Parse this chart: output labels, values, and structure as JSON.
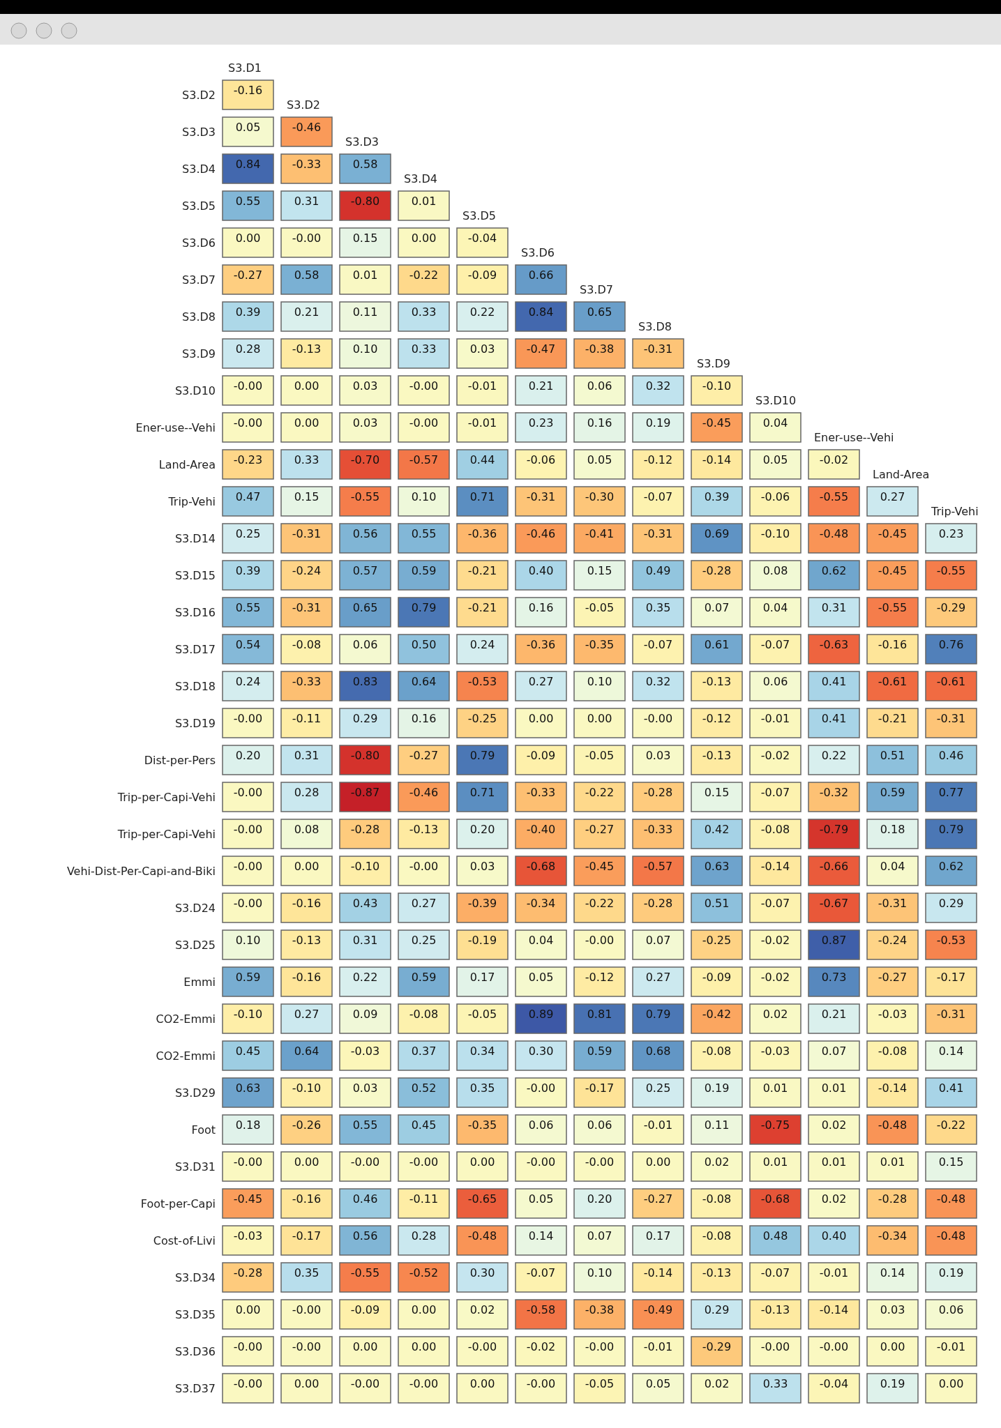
{
  "chart_data": {
    "type": "heatmap",
    "categories": [
      "S3.D1",
      "S3.D2",
      "S3.D3",
      "S3.D4",
      "S3.D5",
      "S3.D6",
      "S3.D7",
      "S3.D8",
      "S3.D9",
      "S3.D10",
      "Ener-use--Vehi",
      "Land-Area",
      "Trip-Vehi"
    ],
    "y_categories": [
      "S3.D2",
      "S3.D3",
      "S3.D4",
      "S3.D5",
      "S3.D6",
      "S3.D7",
      "S3.D8",
      "S3.D9",
      "S3.D10",
      "Ener-use--Vehi",
      "Land-Area",
      "Trip-Vehi",
      "S3.D14",
      "S3.D15",
      "S3.D16",
      "S3.D17",
      "S3.D18",
      "S3.D19",
      "Dist-per-Pers",
      "Trip-per-Capi-Vehi",
      "Trip-per-Capi-Vehi",
      "Vehi-Dist-Per-Capi-and-Biki",
      "S3.D24",
      "S3.D25",
      "Emmi",
      "CO2-Emmi",
      "CO2-Emmi",
      "S3.D29",
      "Foot",
      "S3.D31",
      "Foot-per-Capi",
      "Cost-of-Livi",
      "S3.D34",
      "S3.D35",
      "S3.D36",
      "S3.D37"
    ],
    "cells": [
      [
        -0.16,
        null,
        null,
        null,
        null,
        null,
        null,
        null,
        null,
        null,
        null,
        null,
        null
      ],
      [
        0.05,
        -0.46,
        null,
        null,
        null,
        null,
        null,
        null,
        null,
        null,
        null,
        null,
        null
      ],
      [
        0.84,
        -0.33,
        0.58,
        null,
        null,
        null,
        null,
        null,
        null,
        null,
        null,
        null,
        null
      ],
      [
        0.55,
        0.31,
        -0.8,
        0.01,
        null,
        null,
        null,
        null,
        null,
        null,
        null,
        null,
        null
      ],
      [
        0.0,
        -0.0,
        0.15,
        0.0,
        -0.04,
        null,
        null,
        null,
        null,
        null,
        null,
        null,
        null
      ],
      [
        -0.27,
        0.58,
        0.01,
        -0.22,
        -0.09,
        0.66,
        null,
        null,
        null,
        null,
        null,
        null,
        null
      ],
      [
        0.39,
        0.21,
        0.11,
        0.33,
        0.22,
        0.84,
        0.65,
        null,
        null,
        null,
        null,
        null,
        null
      ],
      [
        0.28,
        -0.13,
        0.1,
        0.33,
        0.03,
        -0.47,
        -0.38,
        -0.31,
        null,
        null,
        null,
        null,
        null
      ],
      [
        -0.0,
        0.0,
        0.03,
        -0.0,
        -0.01,
        0.21,
        0.06,
        0.32,
        -0.1,
        null,
        null,
        null,
        null
      ],
      [
        -0.0,
        0.0,
        0.03,
        -0.0,
        -0.01,
        0.23,
        0.16,
        0.19,
        -0.45,
        0.04,
        null,
        null,
        null
      ],
      [
        -0.23,
        0.33,
        -0.7,
        -0.57,
        0.44,
        -0.06,
        0.05,
        -0.12,
        -0.14,
        0.05,
        -0.02,
        null,
        null
      ],
      [
        0.47,
        0.15,
        -0.55,
        0.1,
        0.71,
        -0.31,
        -0.3,
        -0.07,
        0.39,
        -0.06,
        -0.55,
        0.27,
        null
      ],
      [
        0.25,
        -0.31,
        0.56,
        0.55,
        -0.36,
        -0.46,
        -0.41,
        -0.31,
        0.69,
        -0.1,
        -0.48,
        -0.45,
        0.23
      ],
      [
        0.39,
        -0.24,
        0.57,
        0.59,
        -0.21,
        0.4,
        0.15,
        0.49,
        -0.28,
        0.08,
        0.62,
        -0.45,
        -0.55
      ],
      [
        0.55,
        -0.31,
        0.65,
        0.79,
        -0.21,
        0.16,
        -0.05,
        0.35,
        0.07,
        0.04,
        0.31,
        -0.55,
        -0.29
      ],
      [
        0.54,
        -0.08,
        0.06,
        0.5,
        0.24,
        -0.36,
        -0.35,
        -0.07,
        0.61,
        -0.07,
        -0.63,
        -0.16,
        0.76
      ],
      [
        0.24,
        -0.33,
        0.83,
        0.64,
        -0.53,
        0.27,
        0.1,
        0.32,
        -0.13,
        0.06,
        0.41,
        -0.61,
        -0.61
      ],
      [
        -0.0,
        -0.11,
        0.29,
        0.16,
        -0.25,
        0.0,
        0.0,
        -0.0,
        -0.12,
        -0.01,
        0.41,
        -0.21,
        -0.31
      ],
      [
        0.2,
        0.31,
        -0.8,
        -0.27,
        0.79,
        -0.09,
        -0.05,
        0.03,
        -0.13,
        -0.02,
        0.22,
        0.51,
        0.46
      ],
      [
        -0.0,
        0.28,
        -0.87,
        -0.46,
        0.71,
        -0.33,
        -0.22,
        -0.28,
        0.15,
        -0.07,
        -0.32,
        0.59,
        0.77
      ],
      [
        -0.0,
        0.08,
        -0.28,
        -0.13,
        0.2,
        -0.4,
        -0.27,
        -0.33,
        0.42,
        -0.08,
        -0.79,
        0.18,
        0.79
      ],
      [
        -0.0,
        0.0,
        -0.1,
        -0.0,
        0.03,
        -0.68,
        -0.45,
        -0.57,
        0.63,
        -0.14,
        -0.66,
        0.04,
        0.62
      ],
      [
        -0.0,
        -0.16,
        0.43,
        0.27,
        -0.39,
        -0.34,
        -0.22,
        -0.28,
        0.51,
        -0.07,
        -0.67,
        -0.31,
        0.29
      ],
      [
        0.1,
        -0.13,
        0.31,
        0.25,
        -0.19,
        0.04,
        -0.0,
        0.07,
        -0.25,
        -0.02,
        0.87,
        -0.24,
        -0.53
      ],
      [
        0.59,
        -0.16,
        0.22,
        0.59,
        0.17,
        0.05,
        -0.12,
        0.27,
        -0.09,
        -0.02,
        0.73,
        -0.27,
        -0.17
      ],
      [
        -0.1,
        0.27,
        0.09,
        -0.08,
        -0.05,
        0.89,
        0.81,
        0.79,
        -0.42,
        0.02,
        0.21,
        -0.03,
        -0.31
      ],
      [
        0.45,
        0.64,
        -0.03,
        0.37,
        0.34,
        0.3,
        0.59,
        0.68,
        -0.08,
        -0.03,
        0.07,
        -0.08,
        0.14
      ],
      [
        0.63,
        -0.1,
        0.03,
        0.52,
        0.35,
        -0.0,
        -0.17,
        0.25,
        0.19,
        0.01,
        0.01,
        -0.14,
        0.41
      ],
      [
        0.18,
        -0.26,
        0.55,
        0.45,
        -0.35,
        0.06,
        0.06,
        -0.01,
        0.11,
        -0.75,
        0.02,
        -0.48,
        -0.22
      ],
      [
        -0.0,
        0.0,
        -0.0,
        -0.0,
        0.0,
        -0.0,
        -0.0,
        0.0,
        0.02,
        0.01,
        0.01,
        0.01,
        0.15
      ],
      [
        -0.45,
        -0.16,
        0.46,
        -0.11,
        -0.65,
        0.05,
        0.2,
        -0.27,
        -0.08,
        -0.68,
        0.02,
        -0.28,
        -0.48
      ],
      [
        -0.03,
        -0.17,
        0.56,
        0.28,
        -0.48,
        0.14,
        0.07,
        0.17,
        -0.08,
        0.48,
        0.4,
        -0.34,
        -0.48
      ],
      [
        -0.28,
        0.35,
        -0.55,
        -0.52,
        0.3,
        -0.07,
        0.1,
        -0.14,
        -0.13,
        -0.07,
        -0.01,
        0.14,
        0.19
      ],
      [
        0.0,
        -0.0,
        -0.09,
        0.0,
        0.02,
        -0.58,
        -0.38,
        -0.49,
        0.29,
        -0.13,
        -0.14,
        0.03,
        0.06
      ],
      [
        -0.0,
        -0.0,
        0.0,
        0.0,
        -0.0,
        -0.02,
        -0.0,
        -0.01,
        -0.29,
        -0.0,
        -0.0,
        0.0,
        -0.01
      ],
      [
        -0.0,
        0.0,
        -0.0,
        -0.0,
        0.0,
        -0.0,
        -0.05,
        0.05,
        0.02,
        0.33,
        -0.04,
        0.19,
        0.0
      ]
    ],
    "cell_labels": [
      [
        "-0.16",
        null,
        null,
        null,
        null,
        null,
        null,
        null,
        null,
        null,
        null,
        null,
        null
      ],
      [
        "0.05",
        "-0.46",
        null,
        null,
        null,
        null,
        null,
        null,
        null,
        null,
        null,
        null,
        null
      ],
      [
        "0.84",
        "-0.33",
        "0.58",
        null,
        null,
        null,
        null,
        null,
        null,
        null,
        null,
        null,
        null
      ],
      [
        "0.55",
        "0.31",
        "-0.80",
        "0.01",
        null,
        null,
        null,
        null,
        null,
        null,
        null,
        null,
        null
      ],
      [
        "0.00",
        "-0.00",
        "0.15",
        "0.00",
        "-0.04",
        null,
        null,
        null,
        null,
        null,
        null,
        null,
        null
      ],
      [
        "-0.27",
        "0.58",
        "0.01",
        "-0.22",
        "-0.09",
        "0.66",
        null,
        null,
        null,
        null,
        null,
        null,
        null
      ],
      [
        "0.39",
        "0.21",
        "0.11",
        "0.33",
        "0.22",
        "0.84",
        "0.65",
        null,
        null,
        null,
        null,
        null,
        null
      ],
      [
        "0.28",
        "-0.13",
        "0.10",
        "0.33",
        "0.03",
        "-0.47",
        "-0.38",
        "-0.31",
        null,
        null,
        null,
        null,
        null
      ],
      [
        "-0.00",
        "0.00",
        "0.03",
        "-0.00",
        "-0.01",
        "0.21",
        "0.06",
        "0.32",
        "-0.10",
        null,
        null,
        null,
        null
      ],
      [
        "-0.00",
        "0.00",
        "0.03",
        "-0.00",
        "-0.01",
        "0.23",
        "0.16",
        "0.19",
        "-0.45",
        "0.04",
        null,
        null,
        null
      ],
      [
        "-0.23",
        "0.33",
        "-0.70",
        "-0.57",
        "0.44",
        "-0.06",
        "0.05",
        "-0.12",
        "-0.14",
        "0.05",
        "-0.02",
        null,
        null
      ],
      [
        "0.47",
        "0.15",
        "-0.55",
        "0.10",
        "0.71",
        "-0.31",
        "-0.30",
        "-0.07",
        "0.39",
        "-0.06",
        "-0.55",
        "0.27",
        null
      ],
      [
        "0.25",
        "-0.31",
        "0.56",
        "0.55",
        "-0.36",
        "-0.46",
        "-0.41",
        "-0.31",
        "0.69",
        "-0.10",
        "-0.48",
        "-0.45",
        "0.23"
      ],
      [
        "0.39",
        "-0.24",
        "0.57",
        "0.59",
        "-0.21",
        "0.40",
        "0.15",
        "0.49",
        "-0.28",
        "0.08",
        "0.62",
        "-0.45",
        "-0.55"
      ],
      [
        "0.55",
        "-0.31",
        "0.65",
        "0.79",
        "-0.21",
        "0.16",
        "-0.05",
        "0.35",
        "0.07",
        "0.04",
        "0.31",
        "-0.55",
        "-0.29"
      ],
      [
        "0.54",
        "-0.08",
        "0.06",
        "0.50",
        "0.24",
        "-0.36",
        "-0.35",
        "-0.07",
        "0.61",
        "-0.07",
        "-0.63",
        "-0.16",
        "0.76"
      ],
      [
        "0.24",
        "-0.33",
        "0.83",
        "0.64",
        "-0.53",
        "0.27",
        "0.10",
        "0.32",
        "-0.13",
        "0.06",
        "0.41",
        "-0.61",
        "-0.61"
      ],
      [
        "-0.00",
        "-0.11",
        "0.29",
        "0.16",
        "-0.25",
        "0.00",
        "0.00",
        "-0.00",
        "-0.12",
        "-0.01",
        "0.41",
        "-0.21",
        "-0.31"
      ],
      [
        "0.20",
        "0.31",
        "-0.80",
        "-0.27",
        "0.79",
        "-0.09",
        "-0.05",
        "0.03",
        "-0.13",
        "-0.02",
        "0.22",
        "0.51",
        "0.46"
      ],
      [
        "-0.00",
        "0.28",
        "-0.87",
        "-0.46",
        "0.71",
        "-0.33",
        "-0.22",
        "-0.28",
        "0.15",
        "-0.07",
        "-0.32",
        "0.59",
        "0.77"
      ],
      [
        "-0.00",
        "0.08",
        "-0.28",
        "-0.13",
        "0.20",
        "-0.40",
        "-0.27",
        "-0.33",
        "0.42",
        "-0.08",
        "-0.79",
        "0.18",
        "0.79"
      ],
      [
        "-0.00",
        "0.00",
        "-0.10",
        "-0.00",
        "0.03",
        "-0.68",
        "-0.45",
        "-0.57",
        "0.63",
        "-0.14",
        "-0.66",
        "0.04",
        "0.62"
      ],
      [
        "-0.00",
        "-0.16",
        "0.43",
        "0.27",
        "-0.39",
        "-0.34",
        "-0.22",
        "-0.28",
        "0.51",
        "-0.07",
        "-0.67",
        "-0.31",
        "0.29"
      ],
      [
        "0.10",
        "-0.13",
        "0.31",
        "0.25",
        "-0.19",
        "0.04",
        "-0.00",
        "0.07",
        "-0.25",
        "-0.02",
        "0.87",
        "-0.24",
        "-0.53"
      ],
      [
        "0.59",
        "-0.16",
        "0.22",
        "0.59",
        "0.17",
        "0.05",
        "-0.12",
        "0.27",
        "-0.09",
        "-0.02",
        "0.73",
        "-0.27",
        "-0.17"
      ],
      [
        "-0.10",
        "0.27",
        "0.09",
        "-0.08",
        "-0.05",
        "0.89",
        "0.81",
        "0.79",
        "-0.42",
        "0.02",
        "0.21",
        "-0.03",
        "-0.31"
      ],
      [
        "0.45",
        "0.64",
        "-0.03",
        "0.37",
        "0.34",
        "0.30",
        "0.59",
        "0.68",
        "-0.08",
        "-0.03",
        "0.07",
        "-0.08",
        "0.14"
      ],
      [
        "0.63",
        "-0.10",
        "0.03",
        "0.52",
        "0.35",
        "-0.00",
        "-0.17",
        "0.25",
        "0.19",
        "0.01",
        "0.01",
        "-0.14",
        "0.41"
      ],
      [
        "0.18",
        "-0.26",
        "0.55",
        "0.45",
        "-0.35",
        "0.06",
        "0.06",
        "-0.01",
        "0.11",
        "-0.75",
        "0.02",
        "-0.48",
        "-0.22"
      ],
      [
        "-0.00",
        "0.00",
        "-0.00",
        "-0.00",
        "0.00",
        "-0.00",
        "-0.00",
        "0.00",
        "0.02",
        "0.01",
        "0.01",
        "0.01",
        "0.15"
      ],
      [
        "-0.45",
        "-0.16",
        "0.46",
        "-0.11",
        "-0.65",
        "0.05",
        "0.20",
        "-0.27",
        "-0.08",
        "-0.68",
        "0.02",
        "-0.28",
        "-0.48"
      ],
      [
        "-0.03",
        "-0.17",
        "0.56",
        "0.28",
        "-0.48",
        "0.14",
        "0.07",
        "0.17",
        "-0.08",
        "0.48",
        "0.40",
        "-0.34",
        "-0.48"
      ],
      [
        "-0.28",
        "0.35",
        "-0.55",
        "-0.52",
        "0.30",
        "-0.07",
        "0.10",
        "-0.14",
        "-0.13",
        "-0.07",
        "-0.01",
        "0.14",
        "0.19"
      ],
      [
        "0.00",
        "-0.00",
        "-0.09",
        "0.00",
        "0.02",
        "-0.58",
        "-0.38",
        "-0.49",
        "0.29",
        "-0.13",
        "-0.14",
        "0.03",
        "0.06"
      ],
      [
        "-0.00",
        "-0.00",
        "0.00",
        "0.00",
        "-0.00",
        "-0.02",
        "-0.00",
        "-0.01",
        "-0.29",
        "-0.00",
        "-0.00",
        "0.00",
        "-0.01"
      ],
      [
        "-0.00",
        "0.00",
        "-0.00",
        "-0.00",
        "0.00",
        "-0.00",
        "-0.05",
        "0.05",
        "0.02",
        "0.33",
        "-0.04",
        "0.19",
        "0.00"
      ]
    ]
  }
}
